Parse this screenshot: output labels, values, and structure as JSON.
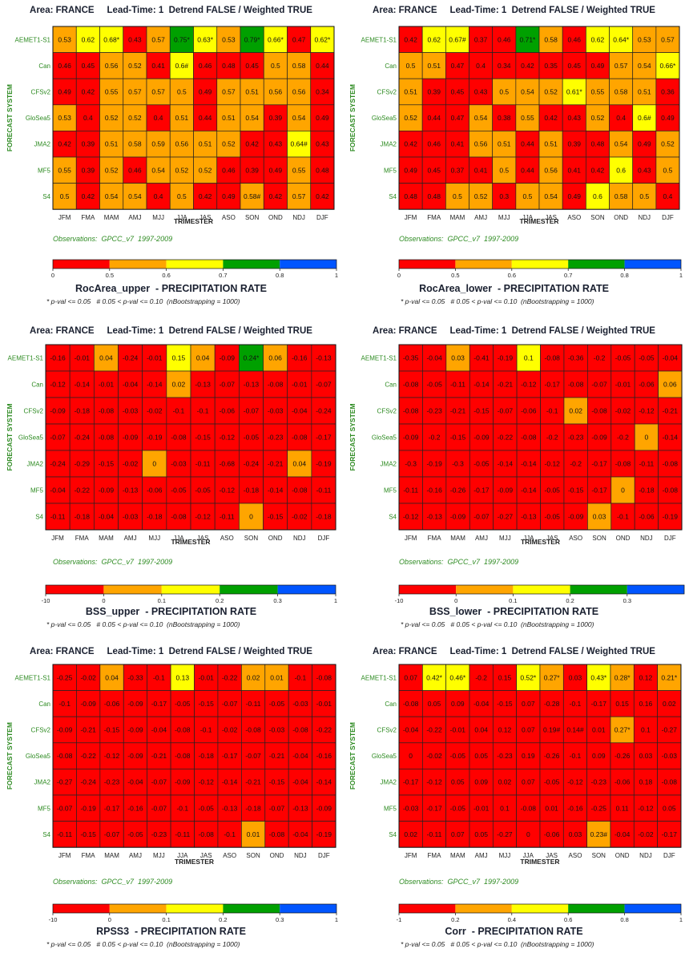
{
  "colors": {
    "bins": [
      "#ff0000",
      "#ffa500",
      "#ffff00",
      "#00a000",
      "#0055ff"
    ],
    "cell_border": "#222222",
    "row_label": "#2e8b22",
    "obs_text": "#2e8b22"
  },
  "common": {
    "rows": [
      "AEMET1-S1",
      "Can",
      "CFSv2",
      "GloSea5",
      "JMA2",
      "MF5",
      "S4"
    ],
    "cols": [
      "JFM",
      "FMA",
      "MAM",
      "AMJ",
      "MJJ",
      "JJA",
      "JAS",
      "ASO",
      "SON",
      "OND",
      "NDJ",
      "DJF"
    ],
    "ylabel": "FORECAST SYSTEM",
    "xlabel": "TRIMESTER",
    "observations": "Observations:  GPCC_v7  1997-2009",
    "significance": "* p-val <= 0.05   # 0.05 < p-val <= 0.10  (nBootstrapping = 1000)"
  },
  "panels": [
    {
      "title": "Area: FRANCE     Lead-Time: 1  Detrend FALSE / Weighted TRUE",
      "metric": "RocArea_upper  - PRECIPITATION RATE"
    },
    {
      "title": "Area: FRANCE     Lead-Time: 1  Detrend FALSE / Weighted TRUE",
      "metric": "RocArea_lower  - PRECIPITATION RATE"
    },
    {
      "title": "Area: FRANCE     Lead-Time: 1  Detrend FALSE / Weighted TRUE",
      "metric": "BSS_upper  - PRECIPITATION RATE"
    },
    {
      "title": "Area: FRANCE     Lead-Time: 1  Detrend FALSE / Weighted TRUE",
      "metric": "BSS_lower  - PRECIPITATION RATE"
    },
    {
      "title": "Area: FRANCE     Lead-Time: 1  Detrend FALSE / Weighted TRUE",
      "metric": "RPSS3  - PRECIPITATION RATE"
    },
    {
      "title": "Area: FRANCE     Lead-Time: 1  Detrend FALSE / Weighted TRUE",
      "metric": "Corr  - PRECIPITATION RATE"
    }
  ],
  "chart_data": [
    {
      "type": "heatmap",
      "title": "Area: FRANCE     Lead-Time: 1  Detrend FALSE / Weighted TRUE",
      "metric": "RocArea_upper  - PRECIPITATION RATE",
      "xlabel": "TRIMESTER",
      "ylabel": "FORECAST SYSTEM",
      "colorbar_ticks": [
        "0",
        "0.5",
        "0.6",
        "0.7",
        "0.8",
        "1"
      ],
      "thresholds": [
        0.5,
        0.6,
        0.7,
        0.8
      ],
      "values": [
        [
          "0.53",
          "0.62",
          "0.68*",
          "0.43",
          "0.57",
          "0.75*",
          "0.63*",
          "0.53",
          "0.79*",
          "0.66*",
          "0.47",
          "0.62*"
        ],
        [
          "0.46",
          "0.45",
          "0.56",
          "0.52",
          "0.41",
          "0.6#",
          "0.46",
          "0.48",
          "0.45",
          "0.5",
          "0.58",
          "0.44"
        ],
        [
          "0.49",
          "0.42",
          "0.55",
          "0.57",
          "0.57",
          "0.5",
          "0.49",
          "0.57",
          "0.51",
          "0.56",
          "0.56",
          "0.34"
        ],
        [
          "0.53",
          "0.4",
          "0.52",
          "0.52",
          "0.4",
          "0.51",
          "0.44",
          "0.51",
          "0.54",
          "0.39",
          "0.54",
          "0.49"
        ],
        [
          "0.42",
          "0.39",
          "0.51",
          "0.58",
          "0.59",
          "0.56",
          "0.51",
          "0.52",
          "0.42",
          "0.43",
          "0.64#",
          "0.43"
        ],
        [
          "0.55",
          "0.39",
          "0.52",
          "0.46",
          "0.54",
          "0.52",
          "0.52",
          "0.46",
          "0.39",
          "0.49",
          "0.55",
          "0.48"
        ],
        [
          "0.5",
          "0.42",
          "0.54",
          "0.54",
          "0.4",
          "0.5",
          "0.42",
          "0.49",
          "0.58#",
          "0.42",
          "0.57",
          "0.42"
        ]
      ]
    },
    {
      "type": "heatmap",
      "title": "Area: FRANCE     Lead-Time: 1  Detrend FALSE / Weighted TRUE",
      "metric": "RocArea_lower  - PRECIPITATION RATE",
      "xlabel": "TRIMESTER",
      "ylabel": "FORECAST SYSTEM",
      "colorbar_ticks": [
        "0",
        "0.5",
        "0.6",
        "0.7",
        "0.8",
        "1"
      ],
      "thresholds": [
        0.5,
        0.6,
        0.7,
        0.8
      ],
      "values": [
        [
          "0.42",
          "0.62",
          "0.67#",
          "0.37",
          "0.46",
          "0.71*",
          "0.58",
          "0.46",
          "0.62",
          "0.64*",
          "0.53",
          "0.57"
        ],
        [
          "0.5",
          "0.51",
          "0.47",
          "0.4",
          "0.34",
          "0.42",
          "0.35",
          "0.45",
          "0.49",
          "0.57",
          "0.54",
          "0.66*"
        ],
        [
          "0.51",
          "0.39",
          "0.45",
          "0.43",
          "0.5",
          "0.54",
          "0.52",
          "0.61*",
          "0.55",
          "0.58",
          "0.51",
          "0.36"
        ],
        [
          "0.52",
          "0.44",
          "0.47",
          "0.54",
          "0.38",
          "0.55",
          "0.42",
          "0.43",
          "0.52",
          "0.4",
          "0.6#",
          "0.49"
        ],
        [
          "0.42",
          "0.46",
          "0.41",
          "0.56",
          "0.51",
          "0.44",
          "0.51",
          "0.39",
          "0.48",
          "0.54",
          "0.49",
          "0.52"
        ],
        [
          "0.49",
          "0.45",
          "0.37",
          "0.41",
          "0.5",
          "0.44",
          "0.56",
          "0.41",
          "0.42",
          "0.6",
          "0.43",
          "0.5"
        ],
        [
          "0.48",
          "0.48",
          "0.5",
          "0.52",
          "0.3",
          "0.5",
          "0.54",
          "0.49",
          "0.6",
          "0.58",
          "0.5",
          "0.4"
        ]
      ]
    },
    {
      "type": "heatmap",
      "title": "Area: FRANCE     Lead-Time: 1  Detrend FALSE / Weighted TRUE",
      "metric": "BSS_upper  - PRECIPITATION RATE",
      "xlabel": "TRIMESTER",
      "ylabel": "FORECAST SYSTEM",
      "colorbar_ticks": [
        "-10",
        "0",
        "0.1",
        "0.2",
        "0.3",
        "1"
      ],
      "thresholds": [
        0,
        0.1,
        0.2,
        0.3
      ],
      "values": [
        [
          "-0.16",
          "-0.01",
          "0.04",
          "-0.24",
          "-0.01",
          "0.15",
          "0.04",
          "-0.09",
          "0.24*",
          "0.06",
          "-0.16",
          "-0.13"
        ],
        [
          "-0.12",
          "-0.14",
          "-0.01",
          "-0.04",
          "-0.14",
          "0.02",
          "-0.13",
          "-0.07",
          "-0.13",
          "-0.08",
          "-0.01",
          "-0.07"
        ],
        [
          "-0.09",
          "-0.18",
          "-0.08",
          "-0.03",
          "-0.02",
          "-0.1",
          "-0.1",
          "-0.06",
          "-0.07",
          "-0.03",
          "-0.04",
          "-0.24"
        ],
        [
          "-0.07",
          "-0.24",
          "-0.08",
          "-0.09",
          "-0.19",
          "-0.08",
          "-0.15",
          "-0.12",
          "-0.05",
          "-0.23",
          "-0.08",
          "-0.17"
        ],
        [
          "-0.24",
          "-0.29",
          "-0.15",
          "-0.02",
          "0",
          "-0.03",
          "-0.11",
          "-0.68",
          "-0.24",
          "-0.21",
          "0.04",
          "-0.19"
        ],
        [
          "-0.04",
          "-0.22",
          "-0.09",
          "-0.13",
          "-0.06",
          "-0.05",
          "-0.05",
          "-0.12",
          "-0.18",
          "-0.14",
          "-0.08",
          "-0.11"
        ],
        [
          "-0.11",
          "-0.18",
          "-0.04",
          "-0.03",
          "-0.18",
          "-0.08",
          "-0.12",
          "-0.11",
          "0",
          "-0.15",
          "-0.02",
          "-0.18"
        ]
      ]
    },
    {
      "type": "heatmap",
      "title": "Area: FRANCE     Lead-Time: 1  Detrend FALSE / Weighted TRUE",
      "metric": "BSS_lower  - PRECIPITATION RATE",
      "xlabel": "TRIMESTER",
      "ylabel": "FORECAST SYSTEM",
      "colorbar_ticks": [
        "-10",
        "0",
        "0.1",
        "0.2",
        "0.3"
      ],
      "thresholds": [
        0,
        0.1,
        0.2,
        0.3
      ],
      "values": [
        [
          "-0.35",
          "-0.04",
          "0.03",
          "-0.41",
          "-0.19",
          "0.1",
          "-0.08",
          "-0.36",
          "-0.2",
          "-0.05",
          "-0.05",
          "-0.04"
        ],
        [
          "-0.08",
          "-0.05",
          "-0.11",
          "-0.14",
          "-0.21",
          "-0.12",
          "-0.17",
          "-0.08",
          "-0.07",
          "-0.01",
          "-0.06",
          "0.06"
        ],
        [
          "-0.08",
          "-0.23",
          "-0.21",
          "-0.15",
          "-0.07",
          "-0.06",
          "-0.1",
          "0.02",
          "-0.08",
          "-0.02",
          "-0.12",
          "-0.21"
        ],
        [
          "-0.09",
          "-0.2",
          "-0.15",
          "-0.09",
          "-0.22",
          "-0.08",
          "-0.2",
          "-0.23",
          "-0.09",
          "-0.2",
          "0",
          "-0.14"
        ],
        [
          "-0.3",
          "-0.19",
          "-0.3",
          "-0.05",
          "-0.14",
          "-0.14",
          "-0.12",
          "-0.2",
          "-0.17",
          "-0.08",
          "-0.11",
          "-0.08"
        ],
        [
          "-0.11",
          "-0.16",
          "-0.26",
          "-0.17",
          "-0.09",
          "-0.14",
          "-0.05",
          "-0.15",
          "-0.17",
          "0",
          "-0.18",
          "-0.08"
        ],
        [
          "-0.12",
          "-0.13",
          "-0.09",
          "-0.07",
          "-0.27",
          "-0.13",
          "-0.05",
          "-0.09",
          "0.03",
          "-0.1",
          "-0.06",
          "-0.19"
        ]
      ]
    },
    {
      "type": "heatmap",
      "title": "Area: FRANCE     Lead-Time: 1  Detrend FALSE / Weighted TRUE",
      "metric": "RPSS3  - PRECIPITATION RATE",
      "xlabel": "TRIMESTER",
      "ylabel": "FORECAST SYSTEM",
      "colorbar_ticks": [
        "-10",
        "0",
        "0.1",
        "0.2",
        "0.3",
        "1"
      ],
      "thresholds": [
        0,
        0.1,
        0.2,
        0.3
      ],
      "values": [
        [
          "-0.25",
          "-0.02",
          "0.04",
          "-0.33",
          "-0.1",
          "0.13",
          "-0.01",
          "-0.22",
          "0.02",
          "0.01",
          "-0.1",
          "-0.08"
        ],
        [
          "-0.1",
          "-0.09",
          "-0.06",
          "-0.09",
          "-0.17",
          "-0.05",
          "-0.15",
          "-0.07",
          "-0.11",
          "-0.05",
          "-0.03",
          "-0.01"
        ],
        [
          "-0.09",
          "-0.21",
          "-0.15",
          "-0.09",
          "-0.04",
          "-0.08",
          "-0.1",
          "-0.02",
          "-0.08",
          "-0.03",
          "-0.08",
          "-0.22"
        ],
        [
          "-0.08",
          "-0.22",
          "-0.12",
          "-0.09",
          "-0.21",
          "-0.08",
          "-0.18",
          "-0.17",
          "-0.07",
          "-0.21",
          "-0.04",
          "-0.16"
        ],
        [
          "-0.27",
          "-0.24",
          "-0.23",
          "-0.04",
          "-0.07",
          "-0.09",
          "-0.12",
          "-0.14",
          "-0.21",
          "-0.15",
          "-0.04",
          "-0.14"
        ],
        [
          "-0.07",
          "-0.19",
          "-0.17",
          "-0.16",
          "-0.07",
          "-0.1",
          "-0.05",
          "-0.13",
          "-0.18",
          "-0.07",
          "-0.13",
          "-0.09"
        ],
        [
          "-0.11",
          "-0.15",
          "-0.07",
          "-0.05",
          "-0.23",
          "-0.11",
          "-0.08",
          "-0.1",
          "0.01",
          "-0.08",
          "-0.04",
          "-0.19"
        ]
      ]
    },
    {
      "type": "heatmap",
      "title": "Area: FRANCE     Lead-Time: 1  Detrend FALSE / Weighted TRUE",
      "metric": "Corr  - PRECIPITATION RATE",
      "xlabel": "TRIMESTER",
      "ylabel": "FORECAST SYSTEM",
      "colorbar_ticks": [
        "-1",
        "0.2",
        "0.4",
        "0.6",
        "0.8",
        "1"
      ],
      "thresholds": [
        0.2,
        0.4,
        0.6,
        0.8
      ],
      "values": [
        [
          "0.07",
          "0.42*",
          "0.46*",
          "-0.2",
          "0.15",
          "0.52*",
          "0.27*",
          "0.03",
          "0.43*",
          "0.28*",
          "0.12",
          "0.21*"
        ],
        [
          "-0.08",
          "0.05",
          "0.09",
          "-0.04",
          "-0.15",
          "0.07",
          "-0.28",
          "-0.1",
          "-0.17",
          "0.15",
          "0.16",
          "0.02"
        ],
        [
          "-0.04",
          "-0.22",
          "-0.01",
          "0.04",
          "0.12",
          "0.07",
          "0.19#",
          "0.14#",
          "0.01",
          "0.27*",
          "0.1",
          "-0.27"
        ],
        [
          "0",
          "-0.02",
          "-0.05",
          "0.05",
          "-0.23",
          "0.19",
          "-0.26",
          "-0.1",
          "0.09",
          "-0.26",
          "0.03",
          "-0.03"
        ],
        [
          "-0.17",
          "-0.12",
          "0.05",
          "0.09",
          "0.02",
          "0.07",
          "-0.05",
          "-0.12",
          "-0.23",
          "-0.06",
          "0.18",
          "-0.08"
        ],
        [
          "-0.03",
          "-0.17",
          "-0.05",
          "-0.01",
          "0.1",
          "-0.08",
          "0.01",
          "-0.16",
          "-0.25",
          "0.11",
          "-0.12",
          "0.05"
        ],
        [
          "0.02",
          "-0.11",
          "0.07",
          "0.05",
          "-0.27",
          "0",
          "-0.06",
          "0.03",
          "0.23#",
          "-0.04",
          "-0.02",
          "-0.17"
        ]
      ]
    }
  ]
}
